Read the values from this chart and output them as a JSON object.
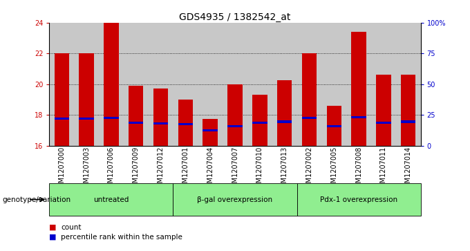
{
  "title": "GDS4935 / 1382542_at",
  "samples": [
    "GSM1207000",
    "GSM1207003",
    "GSM1207006",
    "GSM1207009",
    "GSM1207012",
    "GSM1207001",
    "GSM1207004",
    "GSM1207007",
    "GSM1207010",
    "GSM1207013",
    "GSM1207002",
    "GSM1207005",
    "GSM1207008",
    "GSM1207011",
    "GSM1207014"
  ],
  "count_values": [
    22.0,
    22.0,
    24.0,
    19.9,
    19.7,
    19.0,
    17.75,
    20.0,
    19.3,
    20.25,
    22.0,
    18.6,
    23.4,
    20.6,
    20.6
  ],
  "percentile_values": [
    17.75,
    17.75,
    17.8,
    17.5,
    17.45,
    17.4,
    17.0,
    17.25,
    17.5,
    17.55,
    17.8,
    17.25,
    17.85,
    17.5,
    17.55
  ],
  "groups": [
    {
      "label": "untreated",
      "start": 0,
      "end": 5
    },
    {
      "label": "β-gal overexpression",
      "start": 5,
      "end": 10
    },
    {
      "label": "Pdx-1 overexpression",
      "start": 10,
      "end": 15
    }
  ],
  "ylim": [
    16,
    24
  ],
  "yticks": [
    16,
    18,
    20,
    22,
    24
  ],
  "right_yticks": [
    0,
    25,
    50,
    75,
    100
  ],
  "right_ylabels": [
    "0",
    "25",
    "50",
    "75",
    "100%"
  ],
  "bar_color": "#cc0000",
  "blue_color": "#0000cc",
  "group_color": "#90EE90",
  "bg_color": "#c8c8c8",
  "title_fontsize": 10,
  "tick_fontsize": 7,
  "label_fontsize": 7.5,
  "genotype_label": "genotype/variation"
}
